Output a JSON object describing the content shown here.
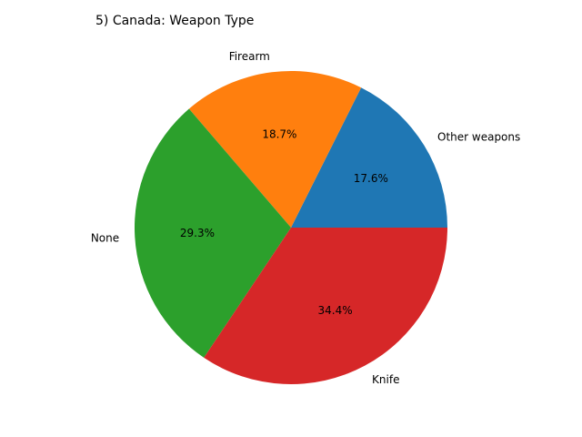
{
  "chart_data": {
    "type": "pie",
    "title": "5) Canada: Weapon Type",
    "slices": [
      {
        "label": "Other weapons",
        "value": 17.6,
        "pct_label": "17.6%",
        "color": "#1f77b4"
      },
      {
        "label": "Firearm",
        "value": 18.7,
        "pct_label": "18.7%",
        "color": "#ff7f0e"
      },
      {
        "label": "None",
        "value": 29.3,
        "pct_label": "29.3%",
        "color": "#2ca02c"
      },
      {
        "label": "Knife",
        "value": 34.4,
        "pct_label": "34.4%",
        "color": "#d62728"
      }
    ],
    "start_angle_deg": 0,
    "direction": "counterclockwise",
    "legend": "none"
  }
}
